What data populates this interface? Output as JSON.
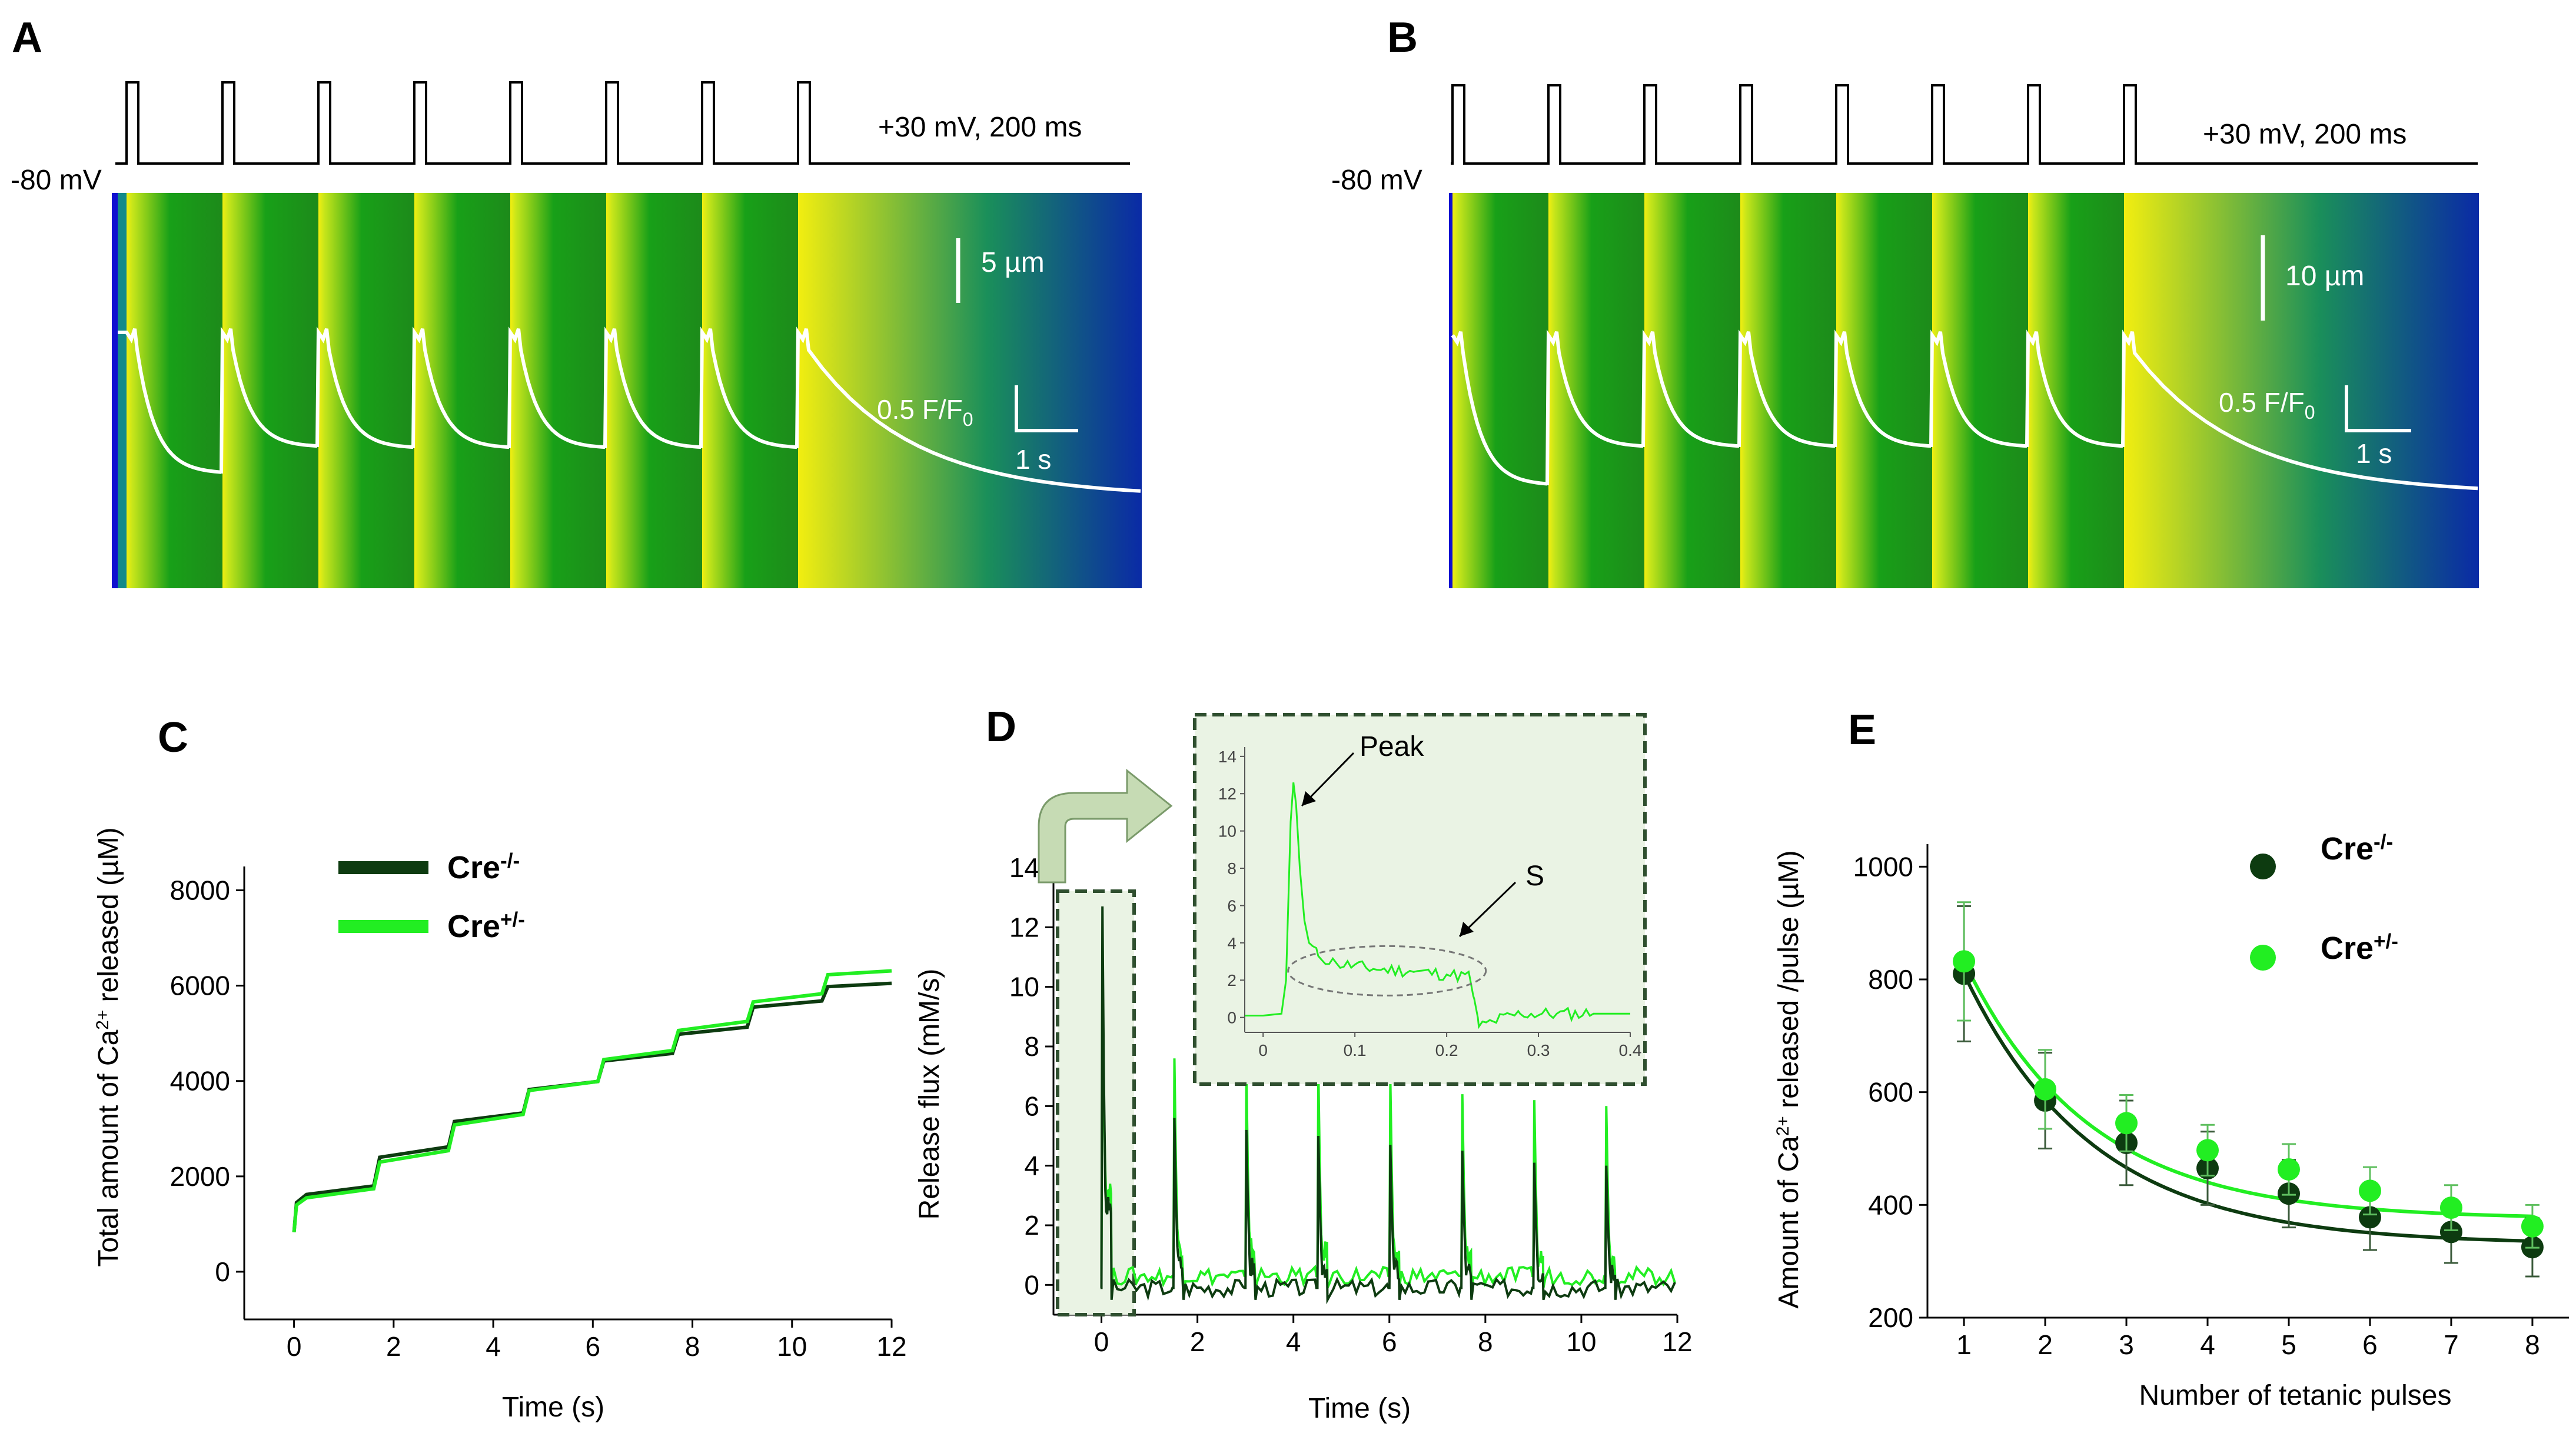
{
  "panels": {
    "A": {
      "label": "A",
      "voltage_hold": "-80 mV",
      "voltage_step": "+30 mV, 200 ms",
      "scale_space": "5 µm",
      "scale_amp_base": "0.5 F/F",
      "scale_amp_sub": "0",
      "scale_time": "1 s",
      "pulse_count": 8
    },
    "B": {
      "label": "B",
      "voltage_hold": "-80 mV",
      "voltage_step": "+30 mV, 200 ms",
      "scale_space": "10 µm",
      "scale_amp_base": "0.5 F/F",
      "scale_amp_sub": "0",
      "scale_time": "1 s",
      "pulse_count": 8
    },
    "C": {
      "label": "C"
    },
    "D": {
      "label": "D",
      "inset_peak_label": "Peak",
      "inset_s_label": "S"
    },
    "E": {
      "label": "E"
    }
  },
  "colors": {
    "cre_neg": "#0d3b10",
    "cre_pos": "#22ee22",
    "inset_box": "#2f4f2f",
    "inset_fill": "#eaf3e4",
    "linescan_low": "#0a2aa6",
    "linescan_mid": "#18a018",
    "linescan_high": "#f2ee10",
    "trace": "#ffffff"
  },
  "chart_data": [
    {
      "panel": "C",
      "type": "line",
      "title": "",
      "xlabel": "Time (s)",
      "ylabel_parts": [
        "Total amount of Ca",
        "2+",
        " released  (µM)"
      ],
      "xlim": [
        -1,
        12
      ],
      "ylim": [
        -1000,
        8500
      ],
      "xticks": [
        0,
        2,
        4,
        6,
        8,
        10,
        12
      ],
      "yticks": [
        0,
        2000,
        4000,
        6000,
        8000
      ],
      "legend": {
        "position": "top-left",
        "entries": [
          {
            "name": "Cre",
            "sup": "-/-"
          },
          {
            "name": "Cre",
            "sup": "+/-"
          }
        ]
      },
      "series": [
        {
          "name": "Cre-/-",
          "x": [
            0,
            0.05,
            0.25,
            1.6,
            1.72,
            3.1,
            3.22,
            4.6,
            4.72,
            6.1,
            6.22,
            7.6,
            7.72,
            9.1,
            9.22,
            10.6,
            10.72,
            12
          ],
          "y": [
            830,
            1450,
            1620,
            1800,
            2400,
            2620,
            3150,
            3330,
            3820,
            3990,
            4420,
            4580,
            4980,
            5130,
            5550,
            5680,
            5980,
            6050
          ]
        },
        {
          "name": "Cre+/-",
          "x": [
            0,
            0.05,
            0.25,
            1.6,
            1.72,
            3.1,
            3.22,
            4.6,
            4.72,
            6.1,
            6.22,
            7.6,
            7.72,
            9.1,
            9.22,
            10.6,
            10.72,
            12
          ],
          "y": [
            830,
            1400,
            1550,
            1740,
            2300,
            2540,
            3080,
            3300,
            3800,
            3990,
            4450,
            4640,
            5060,
            5250,
            5660,
            5830,
            6230,
            6310
          ]
        }
      ]
    },
    {
      "panel": "D",
      "type": "line",
      "title": "",
      "xlabel": "Time (s)",
      "ylabel": "Release flux (mM/s)",
      "xlim": [
        -1,
        12
      ],
      "ylim": [
        -1,
        14
      ],
      "xticks": [
        0,
        2,
        4,
        6,
        8,
        10,
        12
      ],
      "yticks": [
        0,
        2,
        4,
        6,
        8,
        10,
        12,
        14
      ],
      "pulse_onsets_s": [
        0,
        1.5,
        3,
        4.5,
        6,
        7.5,
        9,
        10.5
      ],
      "series": [
        {
          "name": "Cre-/-",
          "peaks": [
            12.7,
            5.6,
            5.2,
            5.0,
            4.7,
            4.5,
            4.1,
            4.0
          ],
          "plateau": [
            2.6,
            0.7,
            0.6,
            0.6,
            0.5,
            0.5,
            0.45,
            0.4
          ],
          "baseline": -0.1
        },
        {
          "name": "Cre+/-",
          "peaks": [
            10.8,
            7.6,
            7.2,
            7.2,
            6.9,
            6.4,
            6.2,
            6.0
          ],
          "plateau": [
            3.2,
            1.3,
            1.2,
            1.1,
            1.0,
            1.0,
            0.9,
            0.9
          ],
          "baseline": 0.3
        }
      ],
      "inset": {
        "xlim": [
          -0.02,
          0.4
        ],
        "ylim": [
          -0.8,
          14.5
        ],
        "xticks": [
          0,
          0.1,
          0.2,
          0.3,
          0.4
        ],
        "xtick_labels": [
          "0",
          "0.1",
          "0.2",
          "0.3",
          "0.4"
        ],
        "yticks": [
          0,
          2,
          4,
          6,
          8,
          10,
          12,
          14
        ],
        "trace": {
          "t": [
            -0.02,
            0.0,
            0.02,
            0.025,
            0.03,
            0.033,
            0.036,
            0.04,
            0.045,
            0.05,
            0.06,
            0.08,
            0.12,
            0.16,
            0.2,
            0.225,
            0.23,
            0.235,
            0.25,
            0.28,
            0.32,
            0.36,
            0.4
          ],
          "y": [
            0.1,
            0.1,
            0.2,
            2.0,
            10.5,
            12.6,
            11.4,
            8.0,
            5.2,
            4.0,
            3.3,
            2.9,
            2.6,
            2.5,
            2.3,
            2.2,
            1.0,
            -0.5,
            -0.2,
            0.2,
            0.2,
            0.2,
            0.2
          ]
        }
      }
    },
    {
      "panel": "E",
      "type": "scatter",
      "title": "",
      "xlabel": "Number of tetanic pulses",
      "ylabel_parts": [
        "Amount of Ca",
        "2+",
        " released /pulse (µM)"
      ],
      "xlim": [
        0.55,
        8.45
      ],
      "ylim": [
        200,
        1040
      ],
      "xticks": [
        1,
        2,
        3,
        4,
        5,
        6,
        7,
        8
      ],
      "yticks": [
        200,
        400,
        600,
        800,
        1000
      ],
      "legend": {
        "position": "top-right",
        "entries": [
          {
            "name": "Cre",
            "sup": "-/-"
          },
          {
            "name": "Cre",
            "sup": "+/-"
          }
        ]
      },
      "series": [
        {
          "name": "Cre-/-",
          "x": [
            1,
            2,
            3,
            4,
            5,
            6,
            7,
            8
          ],
          "y": [
            810,
            585,
            510,
            465,
            420,
            378,
            352,
            325
          ],
          "err": [
            120,
            85,
            75,
            65,
            60,
            58,
            55,
            52
          ],
          "fit": {
            "a": 745,
            "k": 0.63,
            "c": 330
          }
        },
        {
          "name": "Cre+/-",
          "x": [
            1,
            2,
            3,
            4,
            5,
            6,
            7,
            8
          ],
          "y": [
            832,
            605,
            545,
            497,
            463,
            425,
            395,
            362
          ],
          "err": [
            105,
            70,
            50,
            45,
            45,
            42,
            40,
            38
          ],
          "fit": {
            "a": 740,
            "k": 0.65,
            "c": 375
          }
        }
      ]
    }
  ]
}
